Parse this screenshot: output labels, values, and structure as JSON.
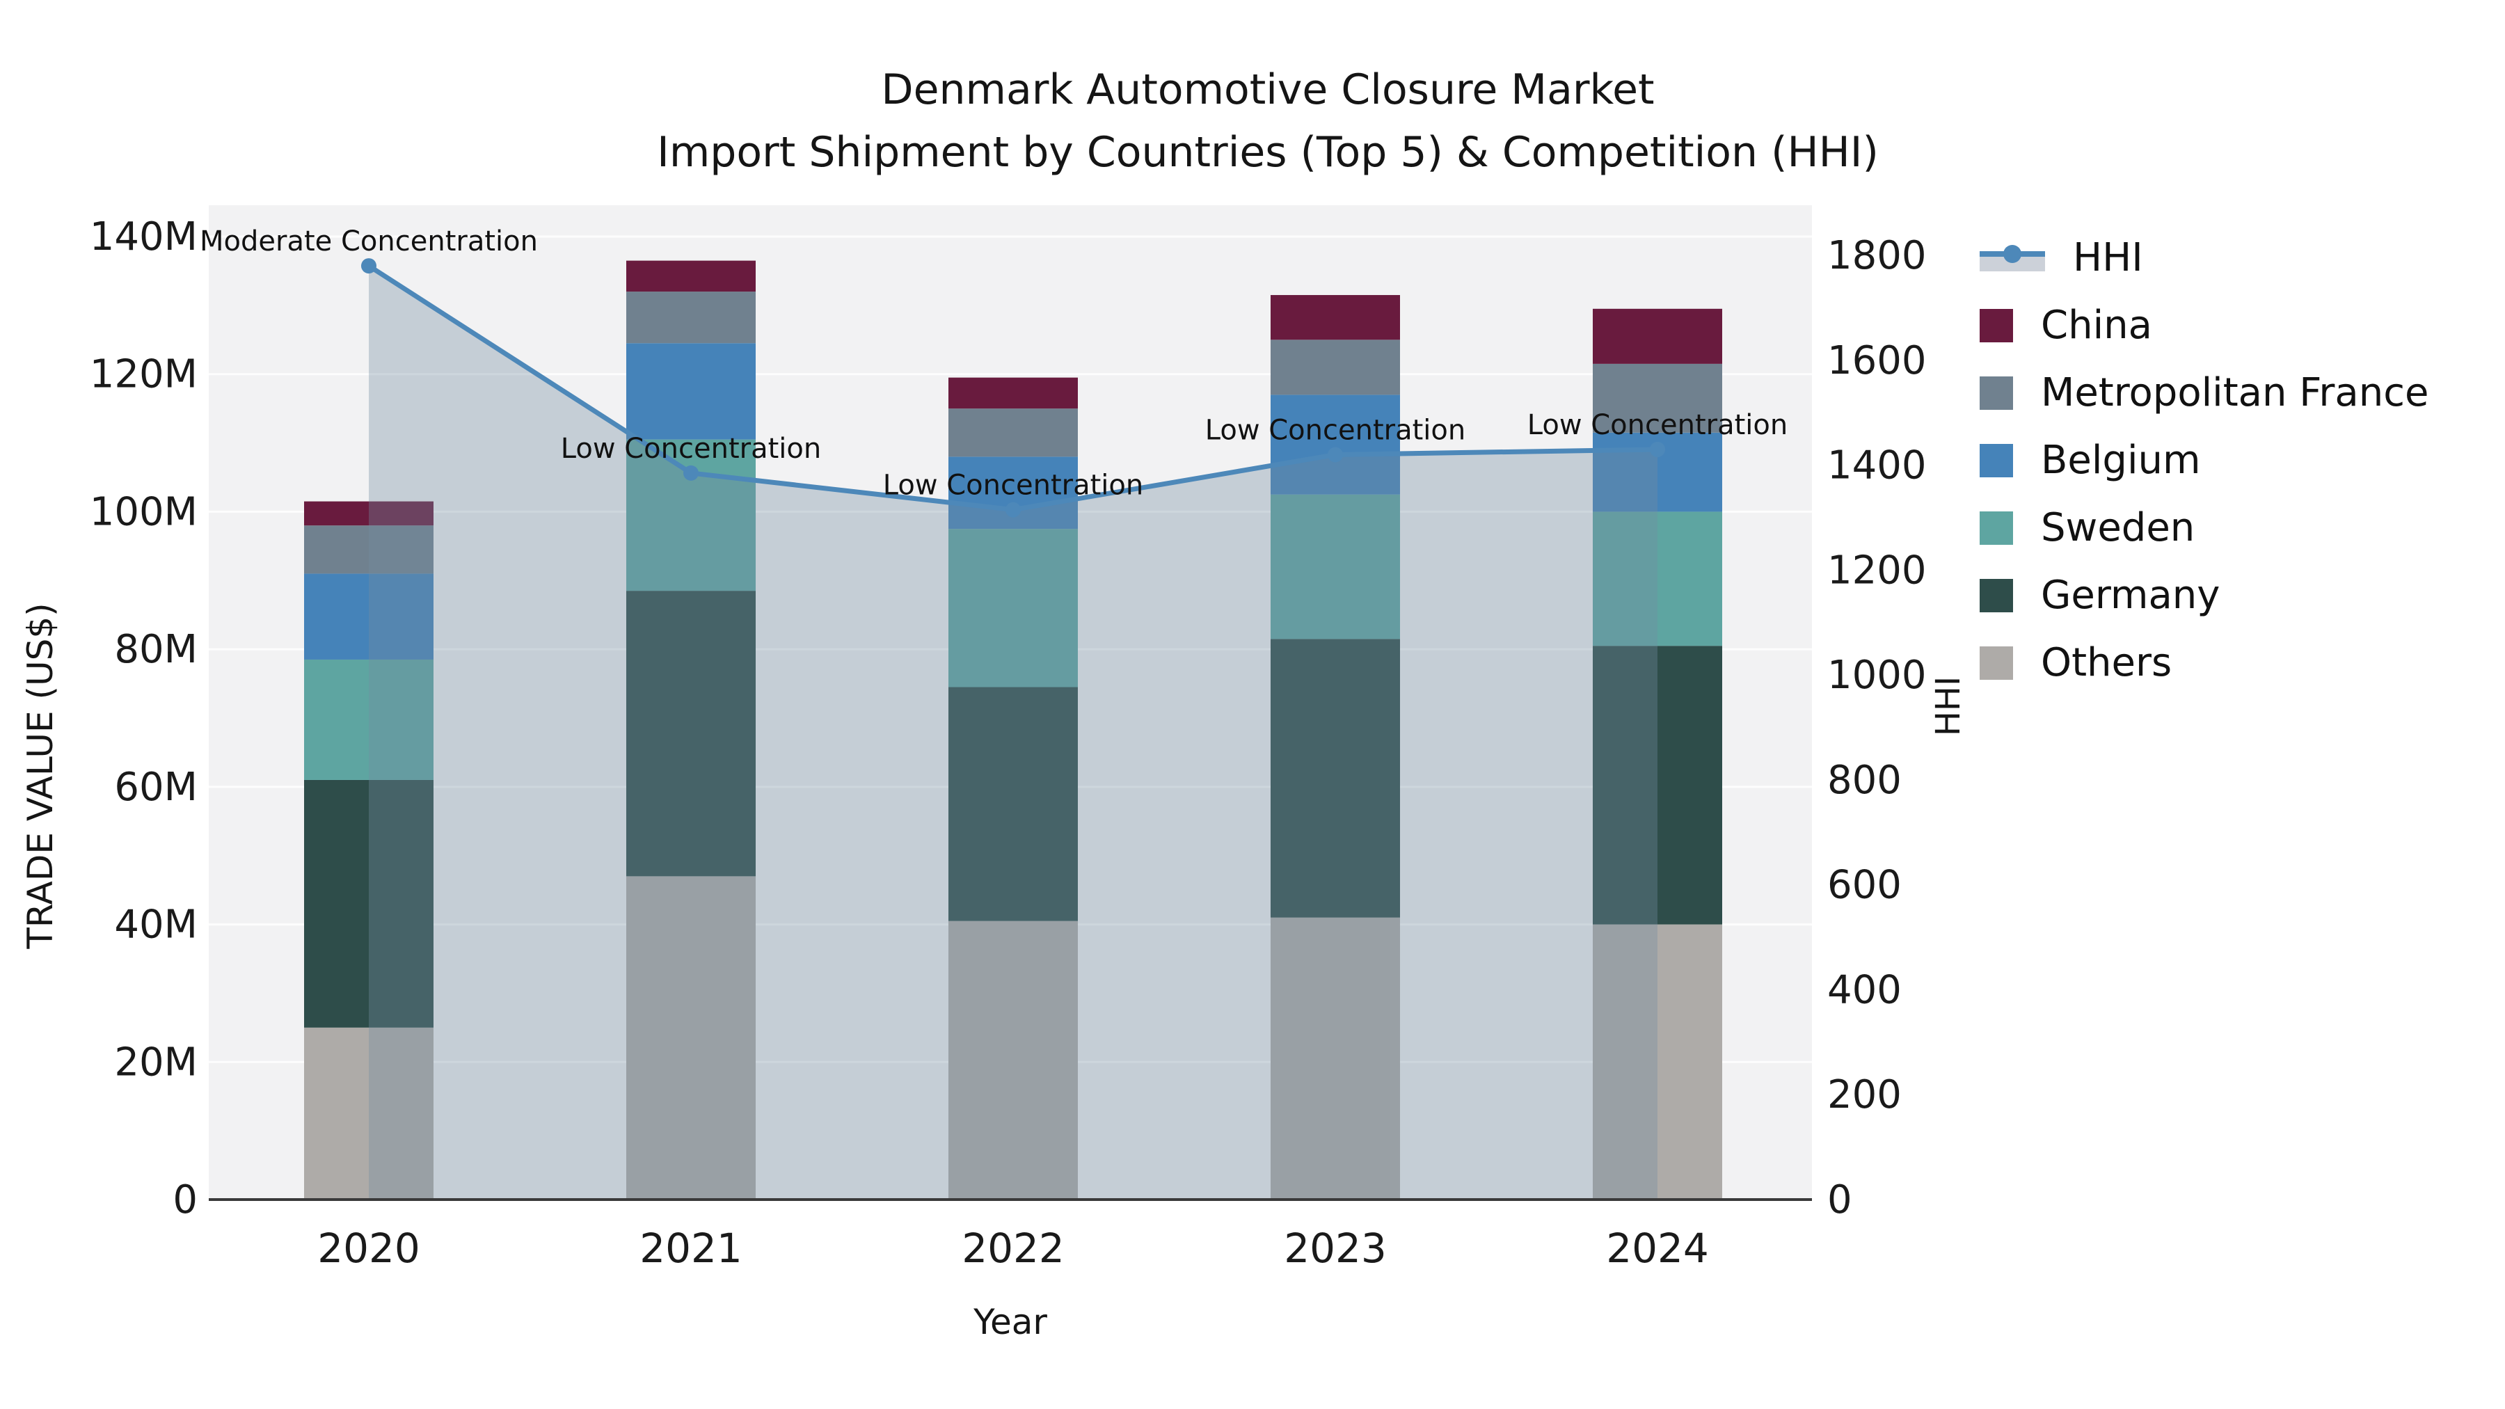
{
  "title": {
    "line1": "Denmark Automotive Closure Market",
    "line2": "Import Shipment by Countries (Top 5) & Competition (HHI)"
  },
  "axes": {
    "y_left_label": "TRADE VALUE (US$)",
    "y_right_label": "HHI",
    "x_label": "Year",
    "y_left_ticks": [
      "0",
      "20M",
      "40M",
      "60M",
      "80M",
      "100M",
      "120M",
      "140M"
    ],
    "y_right_ticks": [
      "0",
      "200",
      "400",
      "600",
      "800",
      "1000",
      "1200",
      "1400",
      "1600",
      "1800"
    ]
  },
  "chart_data": {
    "type": "combo_stacked_bar_line",
    "categories": [
      "2020",
      "2021",
      "2022",
      "2023",
      "2024"
    ],
    "value_units": "million US$",
    "ylim_left": [
      0,
      140
    ],
    "ylim_right": [
      0,
      1800
    ],
    "grid": true,
    "legend_position": "right",
    "series": [
      {
        "name": "Others",
        "color": "#aeaba8",
        "values": [
          25,
          47,
          40.5,
          41,
          40
        ]
      },
      {
        "name": "Germany",
        "color": "#2e4d4a",
        "values": [
          36,
          41.5,
          34,
          40.5,
          40.5
        ]
      },
      {
        "name": "Sweden",
        "color": "#5ea5a1",
        "values": [
          17.5,
          22,
          23,
          21,
          19.5
        ]
      },
      {
        "name": "Belgium",
        "color": "#4583b9",
        "values": [
          12.5,
          14,
          10.5,
          14.5,
          11.5
        ]
      },
      {
        "name": "Metropolitan France",
        "color": "#70818f",
        "values": [
          7,
          7.5,
          7,
          8,
          10
        ]
      },
      {
        "name": "China",
        "color": "#691b3e",
        "values": [
          3.5,
          4.5,
          4.5,
          6.5,
          8
        ]
      }
    ],
    "line": {
      "name": "HHI",
      "axis": "right",
      "color": "#4d88b9",
      "area_fill": "rgba(115,140,160,0.35)",
      "values": [
        1780,
        1385,
        1315,
        1420,
        1430
      ]
    },
    "annotations": [
      {
        "category": "2020",
        "text": "Moderate Concentration"
      },
      {
        "category": "2021",
        "text": "Low Concentration"
      },
      {
        "category": "2022",
        "text": "Low Concentration"
      },
      {
        "category": "2023",
        "text": "Low Concentration"
      },
      {
        "category": "2024",
        "text": "Low Concentration"
      }
    ],
    "legend": [
      {
        "label": "HHI",
        "type": "line",
        "color": "#4d88b9"
      },
      {
        "label": "China",
        "type": "patch",
        "color": "#691b3e"
      },
      {
        "label": "Metropolitan France",
        "type": "patch",
        "color": "#70818f"
      },
      {
        "label": "Belgium",
        "type": "patch",
        "color": "#4583b9"
      },
      {
        "label": "Sweden",
        "type": "patch",
        "color": "#5ea5a1"
      },
      {
        "label": "Germany",
        "type": "patch",
        "color": "#2e4d4a"
      },
      {
        "label": "Others",
        "type": "patch",
        "color": "#aeaba8"
      }
    ],
    "colors": {
      "plot_background": "#f2f2f3",
      "gridline": "#ffffff",
      "axis_line": "#3a3a3a",
      "text": "#1a1a1a"
    }
  }
}
